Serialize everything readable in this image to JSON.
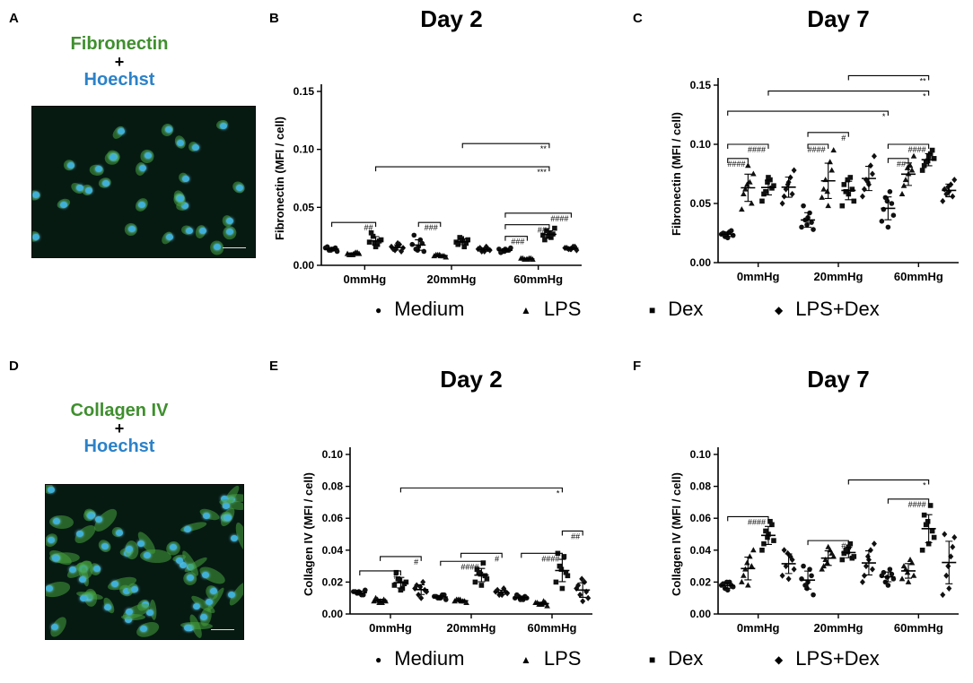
{
  "panels": {
    "A": "A",
    "B": "B",
    "C": "C",
    "D": "D",
    "E": "E",
    "F": "F"
  },
  "stain_a": {
    "top": "Fibronectin",
    "plus": "+",
    "bottom": "Hoechst"
  },
  "stain_d": {
    "top": "Collagen IV",
    "plus": "+",
    "bottom": "Hoechst"
  },
  "colors": {
    "fibronectin_green": "#3f8f2e",
    "hoechst_blue": "#2b82c9"
  },
  "legend": {
    "items": [
      {
        "label": "Medium",
        "marker": "circle"
      },
      {
        "label": "LPS",
        "marker": "triangle"
      },
      {
        "label": "Dex",
        "marker": "square"
      },
      {
        "label": "LPS+Dex",
        "marker": "diamond"
      }
    ]
  },
  "chart_data": [
    {
      "id": "B",
      "type": "scatter",
      "title": "Day 2",
      "ylabel": "Fibronectin (MFI / cell)",
      "ylim": [
        0,
        0.15
      ],
      "yticks": [
        "0.00",
        "0.05",
        "0.10",
        "0.15"
      ],
      "categories": [
        "0mmHg",
        "20mmHg",
        "60mmHg"
      ],
      "series": [
        {
          "name": "Medium",
          "marker": "circle",
          "values": [
            [
              0.015,
              0.013,
              0.014,
              0.012,
              0.016,
              0.014,
              0.015,
              0.013
            ],
            [
              0.018,
              0.014,
              0.022,
              0.012,
              0.026,
              0.016,
              0.019,
              0.013
            ],
            [
              0.014,
              0.012,
              0.013,
              0.015,
              0.011,
              0.014,
              0.013,
              0.012
            ]
          ]
        },
        {
          "name": "LPS",
          "marker": "triangle",
          "values": [
            [
              0.01,
              0.009,
              0.011,
              0.01,
              0.009,
              0.01,
              0.011,
              0.009
            ],
            [
              0.008,
              0.009,
              0.008,
              0.007,
              0.009,
              0.008,
              0.008,
              0.009
            ],
            [
              0.006,
              0.005,
              0.006,
              0.005,
              0.006,
              0.005,
              0.006,
              0.005
            ]
          ]
        },
        {
          "name": "Dex",
          "marker": "square",
          "values": [
            [
              0.02,
              0.025,
              0.018,
              0.022,
              0.028,
              0.016,
              0.021,
              0.019
            ],
            [
              0.02,
              0.024,
              0.016,
              0.022,
              0.018,
              0.021,
              0.019,
              0.023
            ],
            [
              0.026,
              0.03,
              0.024,
              0.032,
              0.022,
              0.028,
              0.027,
              0.025
            ]
          ]
        },
        {
          "name": "LPS+Dex",
          "marker": "diamond",
          "values": [
            [
              0.016,
              0.013,
              0.018,
              0.015,
              0.014,
              0.019,
              0.012,
              0.016
            ],
            [
              0.014,
              0.012,
              0.016,
              0.013,
              0.015,
              0.012,
              0.014,
              0.013
            ],
            [
              0.015,
              0.014,
              0.016,
              0.013,
              0.015,
              0.014,
              0.016,
              0.014
            ]
          ]
        }
      ],
      "annotations": [
        {
          "from": [
            0,
            0
          ],
          "to": [
            0,
            2
          ],
          "level": 0.037,
          "label": "##"
        },
        {
          "from": [
            1,
            0
          ],
          "to": [
            1,
            1
          ],
          "level": 0.037,
          "label": "###"
        },
        {
          "from": [
            2,
            0
          ],
          "to": [
            2,
            1
          ],
          "level": 0.025,
          "label": "###"
        },
        {
          "from": [
            2,
            0
          ],
          "to": [
            2,
            2
          ],
          "level": 0.035,
          "label": "##"
        },
        {
          "from": [
            2,
            0
          ],
          "to": [
            2,
            3
          ],
          "level": 0.045,
          "label": "####"
        },
        {
          "from": [
            0,
            2
          ],
          "to": [
            2,
            2
          ],
          "level": 0.085,
          "label": "***"
        },
        {
          "from": [
            1,
            2
          ],
          "to": [
            2,
            2
          ],
          "level": 0.105,
          "label": "**"
        }
      ]
    },
    {
      "id": "C",
      "type": "scatter",
      "title": "Day 7",
      "ylabel": "Fibronectin (MFI / cell)",
      "ylim": [
        0,
        0.15
      ],
      "yticks": [
        "0.00",
        "0.05",
        "0.10",
        "0.15"
      ],
      "categories": [
        "0mmHg",
        "20mmHg",
        "60mmHg"
      ],
      "series": [
        {
          "name": "Medium",
          "marker": "circle",
          "values": [
            [
              0.024,
              0.022,
              0.026,
              0.023,
              0.025,
              0.021,
              0.027,
              0.024
            ],
            [
              0.03,
              0.036,
              0.042,
              0.028,
              0.048,
              0.038,
              0.034,
              0.032
            ],
            [
              0.035,
              0.055,
              0.06,
              0.04,
              0.045,
              0.03,
              0.05,
              0.052
            ]
          ]
        },
        {
          "name": "LPS",
          "marker": "triangle",
          "values": [
            [
              0.045,
              0.062,
              0.068,
              0.075,
              0.058,
              0.082,
              0.05,
              0.066
            ],
            [
              0.055,
              0.07,
              0.085,
              0.095,
              0.062,
              0.048,
              0.078,
              0.06
            ],
            [
              0.058,
              0.07,
              0.082,
              0.09,
              0.065,
              0.075,
              0.078,
              0.08
            ]
          ]
        },
        {
          "name": "Dex",
          "marker": "square",
          "values": [
            [
              0.052,
              0.06,
              0.07,
              0.065,
              0.058,
              0.072,
              0.063,
              0.068
            ],
            [
              0.048,
              0.06,
              0.072,
              0.052,
              0.066,
              0.058,
              0.062,
              0.07
            ],
            [
              0.078,
              0.085,
              0.092,
              0.088,
              0.082,
              0.09,
              0.095,
              0.086
            ]
          ]
        },
        {
          "name": "LPS+Dex",
          "marker": "diamond",
          "values": [
            [
              0.05,
              0.062,
              0.072,
              0.078,
              0.056,
              0.068,
              0.058,
              0.066
            ],
            [
              0.056,
              0.07,
              0.082,
              0.09,
              0.062,
              0.066,
              0.075,
              0.068
            ],
            [
              0.052,
              0.058,
              0.066,
              0.07,
              0.062,
              0.06,
              0.056,
              0.064
            ]
          ]
        }
      ],
      "annotations": [
        {
          "from": [
            0,
            0
          ],
          "to": [
            0,
            1
          ],
          "level": 0.088,
          "label": "####"
        },
        {
          "from": [
            0,
            0
          ],
          "to": [
            0,
            2
          ],
          "level": 0.1,
          "label": "####"
        },
        {
          "from": [
            1,
            0
          ],
          "to": [
            1,
            1
          ],
          "level": 0.1,
          "label": "####"
        },
        {
          "from": [
            1,
            0
          ],
          "to": [
            1,
            2
          ],
          "level": 0.11,
          "label": "#"
        },
        {
          "from": [
            2,
            0
          ],
          "to": [
            2,
            1
          ],
          "level": 0.088,
          "label": "##"
        },
        {
          "from": [
            2,
            0
          ],
          "to": [
            2,
            2
          ],
          "level": 0.1,
          "label": "####"
        },
        {
          "from": [
            0,
            0
          ],
          "to": [
            2,
            0
          ],
          "level": 0.128,
          "label": "*"
        },
        {
          "from": [
            0,
            2
          ],
          "to": [
            2,
            2
          ],
          "level": 0.145,
          "label": "*"
        },
        {
          "from": [
            1,
            2
          ],
          "to": [
            2,
            2
          ],
          "level": 0.158,
          "label": "**"
        }
      ]
    },
    {
      "id": "E",
      "type": "scatter",
      "title": "Day 2",
      "ylabel": "Collagen IV (MFI / cell)",
      "ylim": [
        0,
        0.1
      ],
      "yticks": [
        "0.00",
        "0.02",
        "0.04",
        "0.06",
        "0.08",
        "0.10"
      ],
      "categories": [
        "0mmHg",
        "20mmHg",
        "60mmHg"
      ],
      "series": [
        {
          "name": "Medium",
          "marker": "circle",
          "values": [
            [
              0.014,
              0.013,
              0.012,
              0.015,
              0.014,
              0.013,
              0.012,
              0.014
            ],
            [
              0.011,
              0.01,
              0.012,
              0.009,
              0.011,
              0.01,
              0.012,
              0.01
            ],
            [
              0.01,
              0.011,
              0.009,
              0.01,
              0.012,
              0.01,
              0.011,
              0.009
            ]
          ]
        },
        {
          "name": "LPS",
          "marker": "triangle",
          "values": [
            [
              0.008,
              0.009,
              0.007,
              0.008,
              0.01,
              0.008,
              0.009,
              0.007
            ],
            [
              0.008,
              0.009,
              0.008,
              0.007,
              0.009,
              0.008,
              0.008,
              0.009
            ],
            [
              0.007,
              0.006,
              0.008,
              0.005,
              0.007,
              0.006,
              0.007,
              0.006
            ]
          ]
        },
        {
          "name": "Dex",
          "marker": "square",
          "values": [
            [
              0.018,
              0.022,
              0.016,
              0.02,
              0.026,
              0.015,
              0.019,
              0.021
            ],
            [
              0.02,
              0.026,
              0.032,
              0.022,
              0.028,
              0.018,
              0.024,
              0.025
            ],
            [
              0.02,
              0.03,
              0.036,
              0.024,
              0.038,
              0.016,
              0.026,
              0.028
            ]
          ]
        },
        {
          "name": "LPS+Dex",
          "marker": "diamond",
          "values": [
            [
              0.016,
              0.012,
              0.02,
              0.014,
              0.018,
              0.01,
              0.015,
              0.017
            ],
            [
              0.014,
              0.012,
              0.016,
              0.013,
              0.015,
              0.012,
              0.014,
              0.013
            ],
            [
              0.016,
              0.012,
              0.02,
              0.01,
              0.018,
              0.008,
              0.014,
              0.022
            ]
          ]
        }
      ],
      "annotations": [
        {
          "from": [
            0,
            0
          ],
          "to": [
            0,
            2
          ],
          "level": 0.027,
          "label": "#"
        },
        {
          "from": [
            0,
            1
          ],
          "to": [
            0,
            3
          ],
          "level": 0.036,
          "label": "#"
        },
        {
          "from": [
            1,
            0
          ],
          "to": [
            1,
            2
          ],
          "level": 0.033,
          "label": "####"
        },
        {
          "from": [
            1,
            1
          ],
          "to": [
            1,
            3
          ],
          "level": 0.038,
          "label": "#"
        },
        {
          "from": [
            2,
            0
          ],
          "to": [
            2,
            2
          ],
          "level": 0.038,
          "label": "####"
        },
        {
          "from": [
            2,
            2
          ],
          "to": [
            2,
            3
          ],
          "level": 0.052,
          "label": "##"
        },
        {
          "from": [
            0,
            2
          ],
          "to": [
            2,
            2
          ],
          "level": 0.079,
          "label": "*"
        }
      ]
    },
    {
      "id": "F",
      "type": "scatter",
      "title": "Day 7",
      "ylabel": "Collagen IV (MFI / cell)",
      "ylim": [
        0,
        0.1
      ],
      "yticks": [
        "0.00",
        "0.02",
        "0.04",
        "0.06",
        "0.08",
        "0.10"
      ],
      "categories": [
        "0mmHg",
        "20mmHg",
        "60mmHg"
      ],
      "series": [
        {
          "name": "Medium",
          "marker": "circle",
          "values": [
            [
              0.018,
              0.016,
              0.02,
              0.017,
              0.019,
              0.015,
              0.018,
              0.02
            ],
            [
              0.022,
              0.018,
              0.028,
              0.012,
              0.03,
              0.02,
              0.024,
              0.016
            ],
            [
              0.024,
              0.02,
              0.028,
              0.022,
              0.026,
              0.018,
              0.025,
              0.023
            ]
          ]
        },
        {
          "name": "LPS",
          "marker": "triangle",
          "values": [
            [
              0.02,
              0.028,
              0.036,
              0.04,
              0.024,
              0.018,
              0.03,
              0.032
            ],
            [
              0.028,
              0.034,
              0.04,
              0.036,
              0.03,
              0.042,
              0.038,
              0.032
            ],
            [
              0.022,
              0.028,
              0.034,
              0.024,
              0.03,
              0.02,
              0.032,
              0.026
            ]
          ]
        },
        {
          "name": "Dex",
          "marker": "square",
          "values": [
            [
              0.04,
              0.052,
              0.058,
              0.046,
              0.044,
              0.05,
              0.056,
              0.048
            ],
            [
              0.034,
              0.04,
              0.044,
              0.036,
              0.038,
              0.042,
              0.035,
              0.039
            ],
            [
              0.04,
              0.056,
              0.068,
              0.048,
              0.062,
              0.044,
              0.052,
              0.058
            ]
          ]
        },
        {
          "name": "LPS+Dex",
          "marker": "diamond",
          "values": [
            [
              0.024,
              0.03,
              0.036,
              0.028,
              0.04,
              0.022,
              0.034,
              0.038
            ],
            [
              0.02,
              0.03,
              0.04,
              0.044,
              0.024,
              0.034,
              0.028,
              0.036
            ],
            [
              0.012,
              0.024,
              0.036,
              0.048,
              0.05,
              0.016,
              0.042,
              0.03
            ]
          ]
        }
      ],
      "annotations": [
        {
          "from": [
            0,
            0
          ],
          "to": [
            0,
            2
          ],
          "level": 0.061,
          "label": "####"
        },
        {
          "from": [
            1,
            0
          ],
          "to": [
            1,
            2
          ],
          "level": 0.046,
          "label": "#"
        },
        {
          "from": [
            2,
            0
          ],
          "to": [
            2,
            2
          ],
          "level": 0.072,
          "label": "####"
        },
        {
          "from": [
            1,
            2
          ],
          "to": [
            2,
            2
          ],
          "level": 0.084,
          "label": "*"
        }
      ]
    }
  ]
}
